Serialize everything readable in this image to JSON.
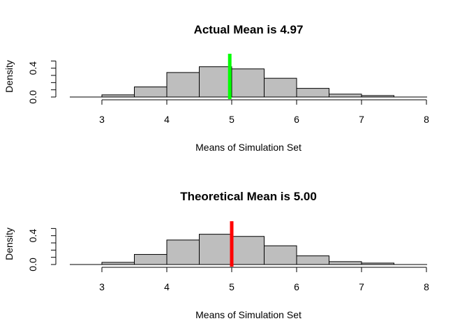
{
  "chart_data": [
    {
      "type": "bar",
      "title": "Actual Mean is  4.97",
      "xlabel": "Means of Simulation Set",
      "ylabel": "Density",
      "xlim": [
        2.5,
        8
      ],
      "ylim": [
        0,
        0.5
      ],
      "x_ticks": [
        "3",
        "4",
        "5",
        "6",
        "7",
        "8"
      ],
      "y_ticks": [
        "0.0",
        "0.4"
      ],
      "bin_edges": [
        3.0,
        3.5,
        4.0,
        4.5,
        5.0,
        5.5,
        6.0,
        6.5,
        7.0,
        7.5
      ],
      "values": [
        0.03,
        0.14,
        0.34,
        0.42,
        0.39,
        0.26,
        0.12,
        0.04,
        0.02
      ],
      "bar_color": "#bebebe",
      "mean_line": {
        "x": 4.97,
        "color": "#00ff00"
      }
    },
    {
      "type": "bar",
      "title": "Theoretical Mean is  5.00",
      "xlabel": "Means of Simulation Set",
      "ylabel": "Density",
      "xlim": [
        2.5,
        8
      ],
      "ylim": [
        0,
        0.5
      ],
      "x_ticks": [
        "3",
        "4",
        "5",
        "6",
        "7",
        "8"
      ],
      "y_ticks": [
        "0.0",
        "0.4"
      ],
      "bin_edges": [
        3.0,
        3.5,
        4.0,
        4.5,
        5.0,
        5.5,
        6.0,
        6.5,
        7.0,
        7.5
      ],
      "values": [
        0.03,
        0.14,
        0.34,
        0.42,
        0.39,
        0.26,
        0.12,
        0.04,
        0.02
      ],
      "bar_color": "#bebebe",
      "mean_line": {
        "x": 5.0,
        "color": "#ff0000"
      }
    }
  ]
}
